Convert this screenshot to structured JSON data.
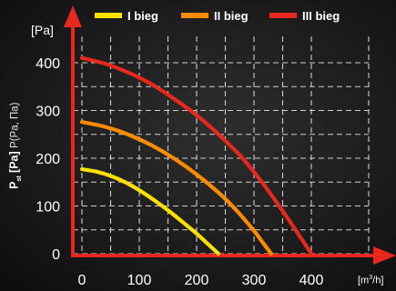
{
  "chart_data": {
    "type": "line",
    "ylabel": {
      "main": "P",
      "sub": "st",
      "unit": "[Pa]",
      "rest": "P(Pa, Па)"
    },
    "y_unit_label": "[Pa]",
    "x_unit_label": {
      "base": "[m",
      "sup": "3",
      "end": "/h]"
    },
    "xlim": [
      0,
      400
    ],
    "ylim": [
      0,
      400
    ],
    "x_ticks": [
      0,
      100,
      200,
      300,
      400
    ],
    "y_ticks": [
      0,
      100,
      200,
      300,
      400
    ],
    "grid": true,
    "legend_position": "top",
    "series": [
      {
        "name": "I bieg",
        "color": "#ffe100",
        "points": [
          [
            0,
            177
          ],
          [
            25,
            172
          ],
          [
            50,
            163
          ],
          [
            75,
            150
          ],
          [
            100,
            133
          ],
          [
            125,
            113
          ],
          [
            150,
            91
          ],
          [
            175,
            67
          ],
          [
            200,
            42
          ],
          [
            220,
            20
          ],
          [
            238,
            0
          ]
        ]
      },
      {
        "name": "II bieg",
        "color": "#ff8c00",
        "points": [
          [
            0,
            276
          ],
          [
            40,
            266
          ],
          [
            80,
            250
          ],
          [
            120,
            228
          ],
          [
            160,
            200
          ],
          [
            200,
            166
          ],
          [
            240,
            126
          ],
          [
            270,
            90
          ],
          [
            300,
            48
          ],
          [
            315,
            24
          ],
          [
            330,
            0
          ]
        ]
      },
      {
        "name": "III bieg",
        "color": "#e8281e",
        "points": [
          [
            0,
            410
          ],
          [
            40,
            398
          ],
          [
            80,
            380
          ],
          [
            120,
            356
          ],
          [
            160,
            325
          ],
          [
            200,
            290
          ],
          [
            240,
            248
          ],
          [
            280,
            200
          ],
          [
            320,
            140
          ],
          [
            360,
            72
          ],
          [
            400,
            0
          ]
        ]
      }
    ]
  }
}
